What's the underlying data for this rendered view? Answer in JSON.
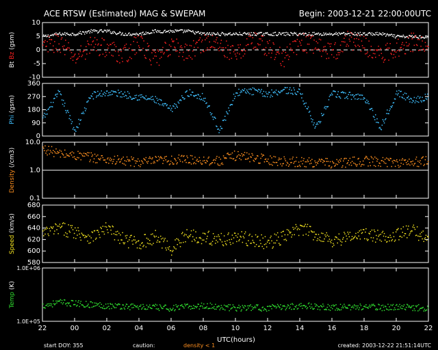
{
  "header": {
    "title": "ACE RTSW (Estimated) MAG & SWEPAM",
    "begin": "Begin: 2003-12-21 22:00:00UTC"
  },
  "footer": {
    "start_doy": "start DOY: 355",
    "caution": "caution:",
    "density_note": "density < 1",
    "created": "created: 2003-12-22 21:51:14UTC"
  },
  "colors": {
    "bt": "#ffffff",
    "bz": "#ff2020",
    "phi": "#40c0ff",
    "density": "#ff9020",
    "speed": "#f0e020",
    "temp": "#30e030",
    "axis": "#ffffff"
  },
  "chart_data": [
    {
      "type": "scatter",
      "panel": "mag",
      "ylabel_parts": [
        "Bt",
        "Bz",
        "(gsm)"
      ],
      "ylim": [
        -10,
        10
      ],
      "yticks": [
        "10",
        "5",
        "0",
        "-5",
        "-10"
      ],
      "yticks_values": [
        10,
        5,
        0,
        -5,
        -10
      ],
      "reference_line": 0,
      "series": [
        {
          "name": "Bt",
          "x": [
            22.0,
            23.0,
            0.0,
            1.0,
            2.0,
            3.0,
            4.0,
            5.0,
            6.0,
            7.0,
            8.0,
            9.0,
            10.0,
            11.0,
            12.0,
            13.0,
            14.0,
            15.0,
            16.0,
            17.0,
            18.0,
            19.0,
            20.0,
            21.0,
            22.0
          ],
          "values": [
            5,
            6,
            6,
            7,
            7,
            6,
            6,
            7,
            7,
            7,
            6,
            6,
            6,
            6,
            6,
            6,
            6,
            6,
            6,
            6,
            6,
            6,
            5,
            5,
            5
          ]
        },
        {
          "name": "Bz",
          "x": [
            22.0,
            23.0,
            0.0,
            1.0,
            2.0,
            3.0,
            4.0,
            5.0,
            6.0,
            7.0,
            8.0,
            9.0,
            10.0,
            11.0,
            12.0,
            13.0,
            14.0,
            15.0,
            16.0,
            17.0,
            18.0,
            19.0,
            20.0,
            21.0,
            22.0
          ],
          "values": [
            1,
            3,
            -3,
            2,
            1,
            -2,
            3,
            -4,
            2,
            -1,
            3,
            2,
            -2,
            4,
            1,
            -3,
            3,
            2,
            -1,
            4,
            2,
            -2,
            1,
            3,
            2
          ]
        }
      ]
    },
    {
      "type": "scatter",
      "panel": "phi",
      "ylabel_parts": [
        "Phi",
        "(gsm)"
      ],
      "ylim": [
        0,
        360
      ],
      "yticks": [
        "360",
        "270",
        "180",
        "90",
        "0"
      ],
      "yticks_values": [
        360,
        270,
        180,
        90,
        0
      ],
      "series": [
        {
          "name": "Phi",
          "x": [
            22.0,
            23.0,
            0.0,
            1.0,
            2.0,
            3.0,
            4.0,
            5.0,
            6.0,
            7.0,
            8.0,
            9.0,
            10.0,
            11.0,
            12.0,
            13.0,
            14.0,
            15.0,
            16.0,
            17.0,
            18.0,
            19.0,
            20.0,
            21.0,
            22.0
          ],
          "values": [
            120,
            300,
            40,
            280,
            300,
            290,
            270,
            250,
            180,
            300,
            270,
            40,
            300,
            310,
            290,
            320,
            300,
            60,
            290,
            280,
            270,
            60,
            300,
            250,
            270
          ]
        }
      ]
    },
    {
      "type": "scatter",
      "panel": "density",
      "ylabel_parts": [
        "Density",
        "(/cm3)"
      ],
      "log_scale": true,
      "ylim": [
        0.1,
        10
      ],
      "yticks": [
        "10.0",
        "1.0",
        "0.1"
      ],
      "yticks_values": [
        10,
        1,
        0.1
      ],
      "reference_line": 1,
      "series": [
        {
          "name": "Density",
          "x": [
            22.0,
            23.0,
            0.0,
            1.0,
            2.0,
            3.0,
            4.0,
            5.0,
            6.0,
            7.0,
            8.0,
            9.0,
            10.0,
            11.0,
            12.0,
            13.0,
            14.0,
            15.0,
            16.0,
            17.0,
            18.0,
            19.0,
            20.0,
            21.0,
            22.0
          ],
          "values": [
            6,
            4,
            3.5,
            3,
            2.5,
            2.2,
            2,
            2.2,
            2.4,
            2.5,
            2.4,
            2.2,
            3.5,
            3,
            2.4,
            2.2,
            2,
            2,
            1.8,
            2,
            2.2,
            2.1,
            2,
            2,
            2.2
          ]
        }
      ]
    },
    {
      "type": "scatter",
      "panel": "speed",
      "ylabel_parts": [
        "Speed",
        "(km/s)"
      ],
      "ylim": [
        580,
        680
      ],
      "yticks": [
        "680",
        "660",
        "640",
        "620",
        "600",
        "580"
      ],
      "yticks_values": [
        680,
        660,
        640,
        620,
        600,
        580
      ],
      "series": [
        {
          "name": "Speed",
          "x": [
            22.0,
            23.0,
            0.0,
            1.0,
            2.0,
            3.0,
            4.0,
            5.0,
            6.0,
            7.0,
            8.0,
            9.0,
            10.0,
            11.0,
            12.0,
            13.0,
            14.0,
            15.0,
            16.0,
            17.0,
            18.0,
            19.0,
            20.0,
            21.0,
            22.0
          ],
          "values": [
            630,
            640,
            635,
            625,
            640,
            620,
            615,
            625,
            605,
            630,
            625,
            620,
            625,
            620,
            615,
            625,
            640,
            630,
            620,
            625,
            630,
            625,
            630,
            635,
            625
          ]
        }
      ]
    },
    {
      "type": "scatter",
      "panel": "temp",
      "ylabel_parts": [
        "Temp",
        "(K)"
      ],
      "log_scale": true,
      "ylim": [
        100000,
        1000000
      ],
      "yticks": [
        "1.0E+06",
        "1.0E+05"
      ],
      "yticks_values": [
        1000000,
        100000
      ],
      "series": [
        {
          "name": "Temp",
          "x": [
            22.0,
            23.0,
            0.0,
            1.0,
            2.0,
            3.0,
            4.0,
            5.0,
            6.0,
            7.0,
            8.0,
            9.0,
            10.0,
            11.0,
            12.0,
            13.0,
            14.0,
            15.0,
            16.0,
            17.0,
            18.0,
            19.0,
            20.0,
            21.0,
            22.0
          ],
          "values": [
            200000,
            230000,
            220000,
            210000,
            200000,
            195000,
            190000,
            185000,
            180000,
            190000,
            200000,
            190000,
            180000,
            185000,
            180000,
            190000,
            200000,
            195000,
            185000,
            190000,
            190000,
            185000,
            190000,
            185000,
            180000
          ]
        }
      ]
    }
  ],
  "x_axis": {
    "label": "UTC(hours)",
    "ticks": [
      "22",
      "00",
      "02",
      "04",
      "06",
      "08",
      "10",
      "12",
      "14",
      "16",
      "18",
      "20",
      "22"
    ]
  }
}
